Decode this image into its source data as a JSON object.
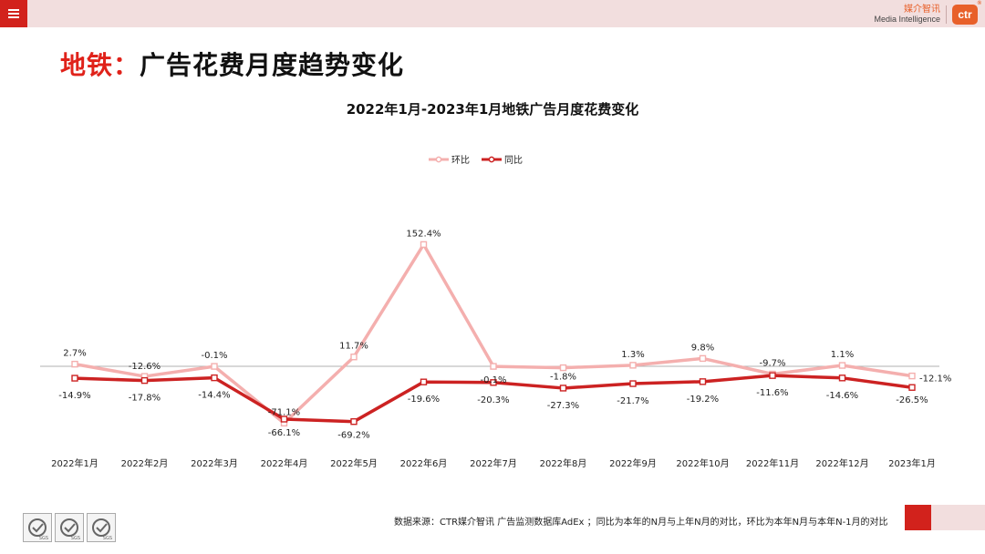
{
  "header": {
    "brand_cn": "媒介智讯",
    "brand_en": "Media Intelligence",
    "logo_text": "ctr",
    "logo_mark": "®"
  },
  "page_title": {
    "highlight": "地铁：",
    "rest": "广告花费月度趋势变化"
  },
  "footer": {
    "source": "数据来源：CTR媒介智讯 广告监测数据库AdEx ；同比为本年的N月与上年N月的对比，环比为本年N月与本年N-1月的对比",
    "seal_label": "SGS"
  },
  "colors": {
    "accent": "#d2221c",
    "mom": "#f4afae",
    "yoy": "#cc2222",
    "band": "#f2dede"
  },
  "icons": [
    "menu-icon",
    "certification-seal-icon"
  ],
  "chart_data": {
    "type": "line",
    "title": "2022年1月-2023年1月地铁广告月度花费变化",
    "categories": [
      "2022年1月",
      "2022年2月",
      "2022年3月",
      "2022年4月",
      "2022年5月",
      "2022年6月",
      "2022年7月",
      "2022年8月",
      "2022年9月",
      "2022年10月",
      "2022年11月",
      "2022年12月",
      "2023年1月"
    ],
    "series": [
      {
        "name": "环比",
        "color": "#f4afae",
        "values": [
          2.7,
          -12.6,
          -0.1,
          -71.1,
          11.7,
          152.4,
          -0.1,
          -1.8,
          1.3,
          9.8,
          -9.7,
          1.1,
          -12.1
        ],
        "labels": [
          "2.7%",
          "-12.6%",
          "-0.1%",
          "-71.1%",
          "11.7%",
          "152.4%",
          "-0.1%",
          "-1.8%",
          "1.3%",
          "9.8%",
          "-9.7%",
          "1.1%",
          "-12.1%"
        ]
      },
      {
        "name": "同比",
        "color": "#cc2222",
        "values": [
          -14.9,
          -17.8,
          -14.4,
          -66.1,
          -69.2,
          -19.6,
          -20.3,
          -27.3,
          -21.7,
          -19.2,
          -11.6,
          -14.6,
          -26.5
        ],
        "labels": [
          "-14.9%",
          "-17.8%",
          "-14.4%",
          "-66.1%",
          "-69.2%",
          "-19.6%",
          "-20.3%",
          "-27.3%",
          "-21.7%",
          "-19.2%",
          "-11.6%",
          "-14.6%",
          "-26.5%"
        ]
      }
    ],
    "legend_position": "top-center",
    "grid": false,
    "zero_line": true
  }
}
